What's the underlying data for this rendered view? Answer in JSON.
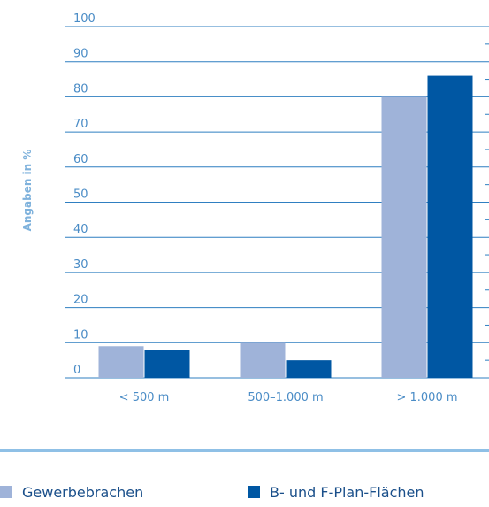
{
  "chart_data": {
    "type": "bar",
    "categories": [
      "< 500 m",
      "500–1.000 m",
      "> 1.000 m"
    ],
    "series": [
      {
        "name": "Gewerbebrachen",
        "values": [
          9,
          10,
          80
        ],
        "color": "#9fb3d9"
      },
      {
        "name": "B- und F-Plan-Flächen",
        "values": [
          8,
          5,
          86
        ],
        "color": "#0057a3"
      }
    ],
    "title": "",
    "xlabel": "",
    "ylabel": "Angaben in %",
    "ylim": [
      0,
      100
    ],
    "yticks": [
      "0",
      "10",
      "20",
      "30",
      "40",
      "50",
      "60",
      "70",
      "80",
      "90",
      "100"
    ],
    "grid": true,
    "legend_position": "bottom",
    "grid_color": "#2f7fc1",
    "separator_color": "#8fc0e6"
  }
}
